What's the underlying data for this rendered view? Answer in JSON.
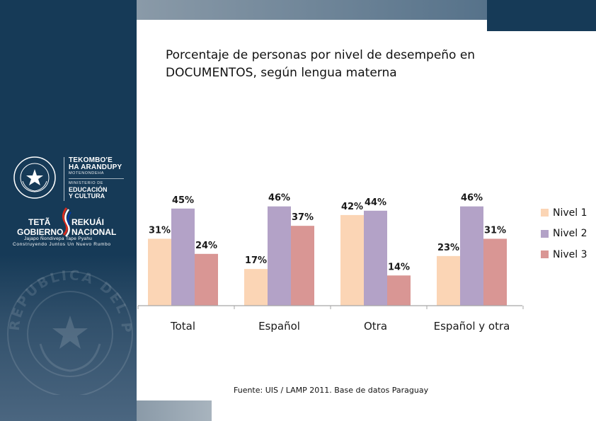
{
  "branding": {
    "ministry_line1": "TEKOMBO'E",
    "ministry_line2": "HA ARANDUPY",
    "ministry_line3": "MOTENONDEHA",
    "ministry_line4": "MINISTERIO DE",
    "ministry_line5": "EDUCACIÓN",
    "ministry_line6": "Y CULTURA",
    "gov_a": "TETÃ",
    "gov_b": "REKUÁI",
    "gov_c": "GOBIERNO",
    "gov_d": "NACIONAL",
    "gov_slogan1": "Jajapo Ñ­ondivepa Tape Pyahu",
    "gov_slogan2": "Construyendo Juntos Un Nuevo Rumbo",
    "seal_text": "REPUBLICA DEL PARAGUAY"
  },
  "colors": {
    "sidebar": "#163a57",
    "nivel1": "#fbd5b5",
    "nivel2": "#b3a2c7",
    "nivel3": "#d99694"
  },
  "chart_data": {
    "type": "bar",
    "title": "Porcentaje de personas por nivel de desempeño en DOCUMENTOS, según lengua materna",
    "categories": [
      "Total",
      "Español",
      "Otra",
      "Español y otra"
    ],
    "series": [
      {
        "name": "Nivel 1",
        "values": [
          31,
          17,
          42,
          23
        ],
        "labels": [
          "31%",
          "17%",
          "42%",
          "23%"
        ]
      },
      {
        "name": "Nivel 2",
        "values": [
          45,
          46,
          44,
          46
        ],
        "labels": [
          "45%",
          "46%",
          "44%",
          "46%"
        ]
      },
      {
        "name": "Nivel 3",
        "values": [
          24,
          37,
          14,
          31
        ],
        "labels": [
          "24%",
          "37%",
          "14%",
          "31%"
        ]
      }
    ],
    "ylim": [
      0,
      50
    ],
    "grid": false,
    "legend": "right"
  },
  "source": "Fuente: UIS / LAMP 2011. Base de datos Paraguay"
}
